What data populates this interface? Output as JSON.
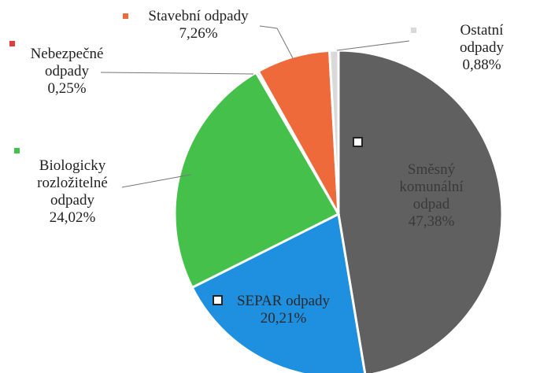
{
  "chart_data": {
    "type": "pie",
    "categories": [
      "Směsný\nkomunální\nodpad",
      "SEPAR odpady",
      "Biologicky\nrozložitelné\nodpady",
      "Nebezpečné\nodpady",
      "Stavební odpady",
      "Ostatní odpady"
    ],
    "values": [
      47.38,
      20.21,
      24.02,
      0.25,
      7.26,
      0.88
    ],
    "value_labels": [
      "47,38%",
      "20,21%",
      "24,02%",
      "0,25%",
      "7,26%",
      "0,88%"
    ],
    "colors": [
      "#606060",
      "#1f8fe0",
      "#45c04b",
      "#e23c3c",
      "#ee6a3a",
      "#d9d9d9"
    ]
  }
}
